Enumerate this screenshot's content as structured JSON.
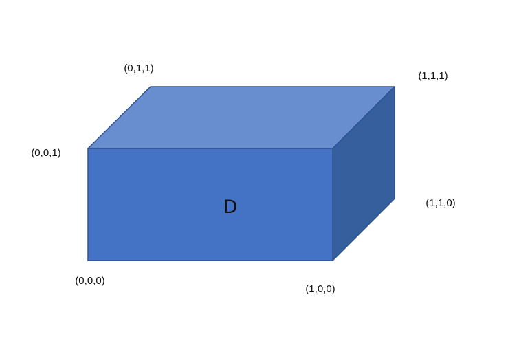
{
  "region": {
    "label": "D"
  },
  "vertices": {
    "v000": "(0,0,0)",
    "v100": "(1,0,0)",
    "v001": "(0,0,1)",
    "v011": "(0,1,1)",
    "v111": "(1,1,1)",
    "v110": "(1,1,0)"
  },
  "colors": {
    "front_face": "#4472C4",
    "top_face": "#698ED0",
    "side_face": "#365F9E",
    "edge": "#2F528F"
  }
}
